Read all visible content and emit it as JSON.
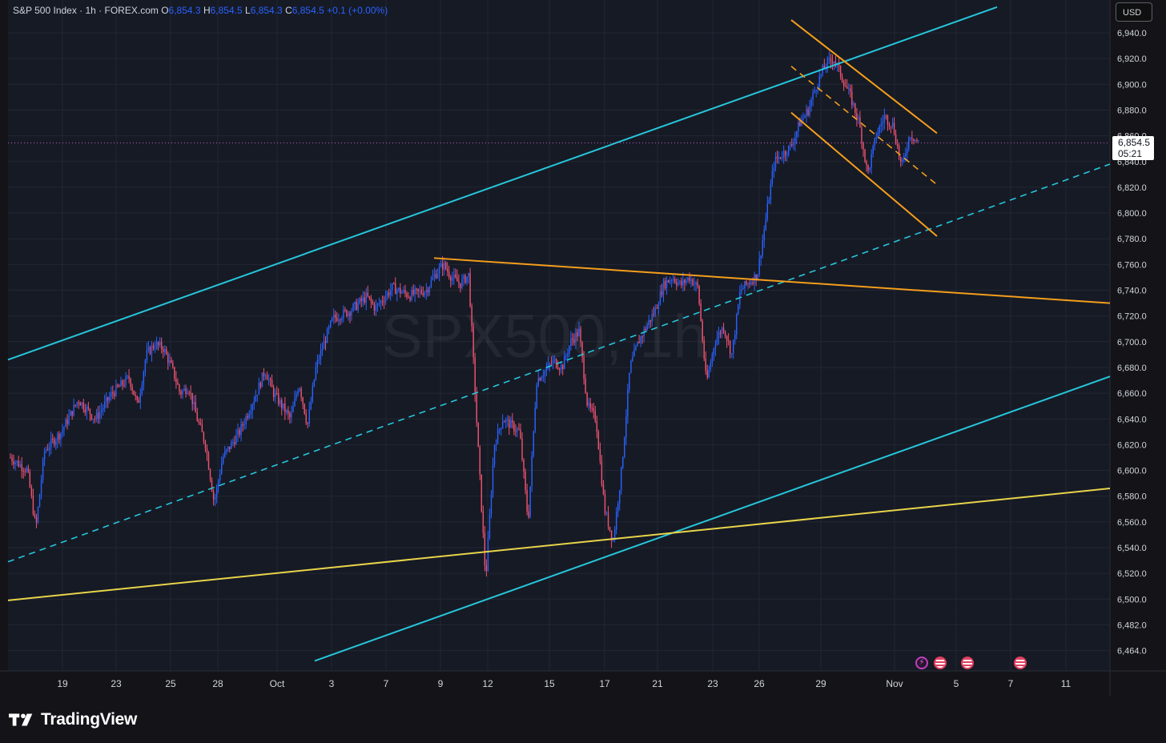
{
  "legend": {
    "symbol": "S&P 500 Index · 1h · FOREX.com",
    "open_label": "O",
    "open": "6,854.3",
    "high_label": "H",
    "high": "6,854.5",
    "low_label": "L",
    "low": "6,854.3",
    "close_label": "C",
    "close": "6,854.5",
    "change": "+0.1 (+0.00%)"
  },
  "currency": "USD",
  "watermark": "SPX500, 1h",
  "last_price": {
    "price": "6,854.5",
    "countdown": "05:21"
  },
  "brand": {
    "name": "TradingView"
  },
  "colors": {
    "background": "#141418",
    "channel": "#26c6da",
    "trendline": "#f59e1b",
    "support": "#e8d44a",
    "bull": "#2962ff",
    "bear": "#ef5370",
    "price_line": "#c05cc0"
  },
  "chart_data": {
    "type": "candlestick",
    "interval": "1h",
    "x_axis_ticks": [
      "19",
      "23",
      "25",
      "28",
      "Oct",
      "3",
      "7",
      "9",
      "12",
      "15",
      "17",
      "21",
      "23",
      "26",
      "29",
      "Nov",
      "5",
      "7",
      "11"
    ],
    "y_axis_ticks": [
      "6,940.0",
      "6,920.0",
      "6,900.0",
      "6,880.0",
      "6,860.0",
      "6,840.0",
      "6,820.0",
      "6,800.0",
      "6,780.0",
      "6,760.0",
      "6,740.0",
      "6,720.0",
      "6,700.0",
      "6,680.0",
      "6,660.0",
      "6,640.0",
      "6,620.0",
      "6,600.0",
      "6,580.0",
      "6,560.0",
      "6,540.0",
      "6,520.0",
      "6,500.0",
      "6,482.0",
      "6,464.0"
    ],
    "price_path": [
      [
        0,
        6610
      ],
      [
        2,
        6600
      ],
      [
        3,
        6555
      ],
      [
        4,
        6615
      ],
      [
        6,
        6630
      ],
      [
        8,
        6655
      ],
      [
        10,
        6640
      ],
      [
        12,
        6660
      ],
      [
        14,
        6672
      ],
      [
        15,
        6650
      ],
      [
        16,
        6690
      ],
      [
        17,
        6698
      ],
      [
        18,
        6695
      ],
      [
        19,
        6680
      ],
      [
        20,
        6660
      ],
      [
        21,
        6665
      ],
      [
        22,
        6640
      ],
      [
        23,
        6620
      ],
      [
        24,
        6575
      ],
      [
        25,
        6610
      ],
      [
        27,
        6630
      ],
      [
        29,
        6660
      ],
      [
        30,
        6678
      ],
      [
        31,
        6660
      ],
      [
        32,
        6650
      ],
      [
        33,
        6640
      ],
      [
        34,
        6668
      ],
      [
        35,
        6635
      ],
      [
        36,
        6680
      ],
      [
        37,
        6700
      ],
      [
        38,
        6718
      ],
      [
        40,
        6724
      ],
      [
        42,
        6735
      ],
      [
        43,
        6726
      ],
      [
        45,
        6742
      ],
      [
        47,
        6736
      ],
      [
        49,
        6740
      ],
      [
        50,
        6752
      ],
      [
        51,
        6760
      ],
      [
        52,
        6750
      ],
      [
        53,
        6745
      ],
      [
        54,
        6752
      ],
      [
        55,
        6630
      ],
      [
        56,
        6515
      ],
      [
        57,
        6620
      ],
      [
        58,
        6640
      ],
      [
        60,
        6630
      ],
      [
        61,
        6560
      ],
      [
        62,
        6670
      ],
      [
        64,
        6685
      ],
      [
        65,
        6680
      ],
      [
        66,
        6700
      ],
      [
        67,
        6708
      ],
      [
        68,
        6650
      ],
      [
        69,
        6640
      ],
      [
        70,
        6570
      ],
      [
        71,
        6545
      ],
      [
        72,
        6600
      ],
      [
        73,
        6680
      ],
      [
        74,
        6700
      ],
      [
        76,
        6725
      ],
      [
        77,
        6745
      ],
      [
        78,
        6750
      ],
      [
        79,
        6744
      ],
      [
        80,
        6750
      ],
      [
        81,
        6742
      ],
      [
        82,
        6668
      ],
      [
        83,
        6700
      ],
      [
        84,
        6712
      ],
      [
        85,
        6690
      ],
      [
        86,
        6740
      ],
      [
        88,
        6752
      ],
      [
        89,
        6795
      ],
      [
        90,
        6840
      ],
      [
        92,
        6852
      ],
      [
        93,
        6870
      ],
      [
        94,
        6880
      ],
      [
        95,
        6900
      ],
      [
        96,
        6915
      ],
      [
        97,
        6920
      ],
      [
        98,
        6905
      ],
      [
        99,
        6890
      ],
      [
        100,
        6870
      ],
      [
        101,
        6830
      ],
      [
        102,
        6860
      ],
      [
        103,
        6875
      ],
      [
        104,
        6868
      ],
      [
        105,
        6835
      ],
      [
        106,
        6862
      ],
      [
        107,
        6854.5
      ]
    ],
    "last_price": 6854.5,
    "drawings": [
      {
        "kind": "channel-upper",
        "color": "channel",
        "from": [
          "Sep 16",
          6686
        ],
        "to": [
          "Nov 1",
          6960
        ]
      },
      {
        "kind": "channel-midline",
        "color": "channel",
        "dashed": true,
        "from": [
          "Sep 16",
          6529
        ],
        "to": [
          "Nov 13",
          6838
        ]
      },
      {
        "kind": "channel-lower",
        "color": "channel",
        "from": [
          "Oct 2",
          6452
        ],
        "to": [
          "Nov 13",
          6673
        ]
      },
      {
        "kind": "support-line",
        "color": "support",
        "from": [
          "Sep 16",
          6499
        ],
        "to": [
          "Nov 13",
          6586
        ]
      },
      {
        "kind": "resistance-line",
        "color": "trendline",
        "from": [
          "Oct 8",
          6765
        ],
        "to": [
          "Nov 13",
          6730
        ]
      },
      {
        "kind": "descending-channel-upper",
        "color": "trendline",
        "from": [
          "Oct 27",
          6950
        ],
        "to": [
          "Nov 3",
          6862
        ]
      },
      {
        "kind": "descending-channel-lower",
        "color": "trendline",
        "from": [
          "Oct 27",
          6878
        ],
        "to": [
          "Nov 3",
          6782
        ]
      },
      {
        "kind": "descending-channel-mid",
        "color": "trendline",
        "dashed": true,
        "from": [
          "Oct 27",
          6914
        ],
        "to": [
          "Nov 3",
          6822
        ]
      }
    ],
    "events": [
      {
        "kind": "earnings",
        "label": "⚡"
      },
      {
        "kind": "us-economic",
        "label": "US"
      },
      {
        "kind": "us-economic",
        "label": "US"
      },
      {
        "kind": "us-economic",
        "label": "US"
      }
    ]
  }
}
